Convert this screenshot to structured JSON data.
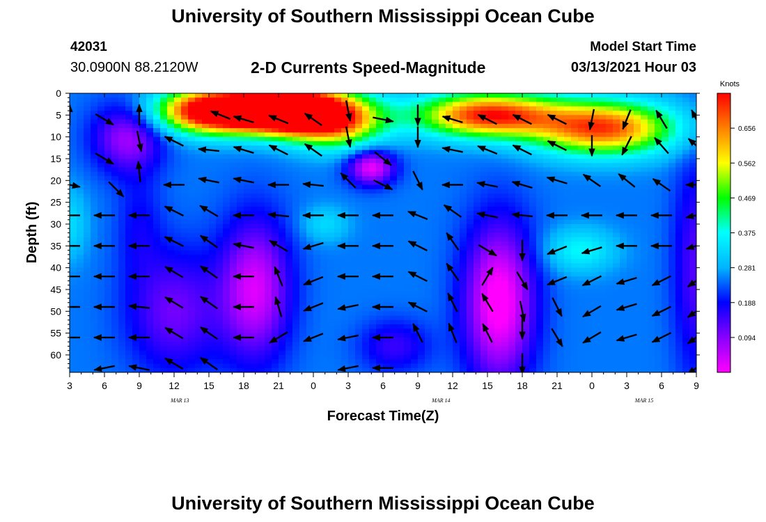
{
  "header": {
    "title": "University of Southern Mississippi Ocean Cube",
    "station_id": "42031",
    "station_coords": "30.0900N 88.2120W",
    "chart_title": "2-D Currents Speed-Magnitude",
    "model_start_label": "Model Start Time",
    "model_start_value": "03/13/2021 Hour 03"
  },
  "footer": {
    "title": "University of Southern Mississippi Ocean Cube"
  },
  "chart_data": {
    "type": "heatmap",
    "title": "2-D Currents Speed-Magnitude",
    "xlabel": "Forecast Time(Z)",
    "ylabel": "Depth (ft)",
    "x_unit": "hours since model start (03/13/2021 03Z)",
    "xlim": [
      0,
      54
    ],
    "ylim": [
      0,
      64
    ],
    "x_ticks": [
      {
        "label": "3",
        "value": 0
      },
      {
        "label": "6",
        "value": 3
      },
      {
        "label": "9",
        "value": 6
      },
      {
        "label": "12",
        "value": 9
      },
      {
        "label": "15",
        "value": 12
      },
      {
        "label": "18",
        "value": 15
      },
      {
        "label": "21",
        "value": 18
      },
      {
        "label": "0",
        "value": 21
      },
      {
        "label": "3",
        "value": 24
      },
      {
        "label": "6",
        "value": 27
      },
      {
        "label": "9",
        "value": 30
      },
      {
        "label": "12",
        "value": 33
      },
      {
        "label": "15",
        "value": 36
      },
      {
        "label": "18",
        "value": 39
      },
      {
        "label": "21",
        "value": 42
      },
      {
        "label": "0",
        "value": 45
      },
      {
        "label": "3",
        "value": 48
      },
      {
        "label": "6",
        "value": 51
      },
      {
        "label": "9",
        "value": 54
      }
    ],
    "date_labels": [
      {
        "label": "MAR 13",
        "value": 9.5
      },
      {
        "label": "MAR 14",
        "value": 32
      },
      {
        "label": "MAR 15",
        "value": 49.5
      }
    ],
    "y_ticks": [
      0,
      5,
      10,
      15,
      20,
      25,
      30,
      35,
      40,
      45,
      50,
      55,
      60
    ],
    "colorbar": {
      "unit": "Knots",
      "ticks": [
        "0.094",
        "0.188",
        "0.281",
        "0.375",
        "0.469",
        "0.562",
        "0.656"
      ],
      "tick_values": [
        0.094,
        0.188,
        0.281,
        0.375,
        0.469,
        0.562,
        0.656
      ],
      "range": [
        0,
        0.75
      ],
      "colors": [
        "#ff00ff",
        "#8800ff",
        "#0000ff",
        "#00b4ff",
        "#00ffff",
        "#00ff00",
        "#ffff00",
        "#ff8000",
        "#ff0000"
      ]
    },
    "speed_blobs": [
      {
        "x": 13,
        "y": 4,
        "sx": 5,
        "sy": 5,
        "v": 0.69
      },
      {
        "x": 19,
        "y": 4,
        "sx": 4,
        "sy": 5,
        "v": 0.69
      },
      {
        "x": 23,
        "y": 6,
        "sx": 4,
        "sy": 6,
        "v": 0.43
      },
      {
        "x": 36,
        "y": 5,
        "sx": 6,
        "sy": 5,
        "v": 0.48
      },
      {
        "x": 46,
        "y": 8,
        "sx": 6,
        "sy": 6,
        "v": 0.45
      },
      {
        "x": 5,
        "y": 10,
        "sx": 3,
        "sy": 8,
        "v": -0.18
      },
      {
        "x": 26,
        "y": 17,
        "sx": 2,
        "sy": 4,
        "v": -0.24
      },
      {
        "x": 16,
        "y": 45,
        "sx": 3,
        "sy": 16,
        "v": -0.22
      },
      {
        "x": 37,
        "y": 48,
        "sx": 3,
        "sy": 18,
        "v": -0.27
      },
      {
        "x": 9,
        "y": 50,
        "sx": 4,
        "sy": 14,
        "v": -0.14
      },
      {
        "x": 44,
        "y": 36,
        "sx": 3,
        "sy": 5,
        "v": 0.12
      },
      {
        "x": 22,
        "y": 30,
        "sx": 2,
        "sy": 4,
        "v": 0.08
      },
      {
        "x": 54,
        "y": 40,
        "sx": 2,
        "sy": 25,
        "v": -0.12
      },
      {
        "x": 28,
        "y": 58,
        "sx": 3,
        "sy": 6,
        "v": -0.1
      },
      {
        "x": 6,
        "y": 30,
        "sx": 2,
        "sy": 12,
        "v": -0.06
      },
      {
        "x": 0,
        "y": 30,
        "sx": 1.5,
        "sy": 8,
        "v": 0.08
      }
    ],
    "vectors": [
      {
        "t": 0,
        "d": 5,
        "dx": 0,
        "dy": -1
      },
      {
        "t": 3,
        "d": 6,
        "dx": 1,
        "dy": 0.6
      },
      {
        "t": 6,
        "d": 5,
        "dx": 0,
        "dy": -1
      },
      {
        "t": 13,
        "d": 5,
        "dx": -1,
        "dy": -0.4
      },
      {
        "t": 15,
        "d": 6,
        "dx": -1,
        "dy": -0.3
      },
      {
        "t": 18,
        "d": 6,
        "dx": -1,
        "dy": -0.4
      },
      {
        "t": 21,
        "d": 6,
        "dx": -1,
        "dy": -0.7
      },
      {
        "t": 24,
        "d": 4,
        "dx": 0.2,
        "dy": 1
      },
      {
        "t": 27,
        "d": 6,
        "dx": 1,
        "dy": 0.2
      },
      {
        "t": 30,
        "d": 5,
        "dx": 0,
        "dy": 1
      },
      {
        "t": 33,
        "d": 6,
        "dx": -1,
        "dy": -0.3
      },
      {
        "t": 36,
        "d": 6,
        "dx": -1,
        "dy": -0.5
      },
      {
        "t": 39,
        "d": 6,
        "dx": -1,
        "dy": -0.5
      },
      {
        "t": 42,
        "d": 6,
        "dx": -1,
        "dy": -0.5
      },
      {
        "t": 45,
        "d": 6,
        "dx": -0.2,
        "dy": 1
      },
      {
        "t": 48,
        "d": 6,
        "dx": -0.4,
        "dy": 1
      },
      {
        "t": 51,
        "d": 6,
        "dx": -0.6,
        "dy": -1
      },
      {
        "t": 54,
        "d": 6,
        "dx": -0.5,
        "dy": -1
      },
      {
        "t": 3,
        "d": 15,
        "dx": 1,
        "dy": 0.6
      },
      {
        "t": 6,
        "d": 11,
        "dx": 0.2,
        "dy": 1
      },
      {
        "t": 9,
        "d": 11,
        "dx": -1,
        "dy": -0.5
      },
      {
        "t": 12,
        "d": 13,
        "dx": -1,
        "dy": -0.1
      },
      {
        "t": 15,
        "d": 13,
        "dx": -1,
        "dy": -0.3
      },
      {
        "t": 18,
        "d": 13,
        "dx": -1,
        "dy": -0.5
      },
      {
        "t": 21,
        "d": 13,
        "dx": -1,
        "dy": -0.7
      },
      {
        "t": 24,
        "d": 10,
        "dx": 0.2,
        "dy": 1
      },
      {
        "t": 27,
        "d": 15,
        "dx": 1,
        "dy": 0.8
      },
      {
        "t": 30,
        "d": 10,
        "dx": 0,
        "dy": 1
      },
      {
        "t": 33,
        "d": 13,
        "dx": -1,
        "dy": -0.2
      },
      {
        "t": 36,
        "d": 13,
        "dx": -1,
        "dy": -0.4
      },
      {
        "t": 39,
        "d": 13,
        "dx": -1,
        "dy": -0.5
      },
      {
        "t": 42,
        "d": 12,
        "dx": -1,
        "dy": -0.5
      },
      {
        "t": 45,
        "d": 12,
        "dx": 0,
        "dy": 1
      },
      {
        "t": 48,
        "d": 12,
        "dx": -0.5,
        "dy": 1
      },
      {
        "t": 51,
        "d": 12,
        "dx": -0.7,
        "dy": -0.8
      },
      {
        "t": 54,
        "d": 12,
        "dx": -0.8,
        "dy": -0.7
      },
      {
        "t": 0,
        "d": 21,
        "dx": 1,
        "dy": 0.2
      },
      {
        "t": 4,
        "d": 22,
        "dx": 1,
        "dy": 1
      },
      {
        "t": 6,
        "d": 18,
        "dx": -0.1,
        "dy": -1
      },
      {
        "t": 9,
        "d": 21,
        "dx": -1,
        "dy": 0
      },
      {
        "t": 12,
        "d": 20,
        "dx": -1,
        "dy": -0.2
      },
      {
        "t": 15,
        "d": 20,
        "dx": -1,
        "dy": -0.2
      },
      {
        "t": 18,
        "d": 21,
        "dx": -1,
        "dy": 0
      },
      {
        "t": 21,
        "d": 21,
        "dx": -1,
        "dy": -0.1
      },
      {
        "t": 24,
        "d": 20,
        "dx": -1,
        "dy": -1
      },
      {
        "t": 27,
        "d": 21,
        "dx": 1,
        "dy": 0.5
      },
      {
        "t": 30,
        "d": 20,
        "dx": 0.5,
        "dy": 1
      },
      {
        "t": 33,
        "d": 21,
        "dx": -1,
        "dy": 0
      },
      {
        "t": 36,
        "d": 21,
        "dx": -1,
        "dy": -0.2
      },
      {
        "t": 39,
        "d": 21,
        "dx": -1,
        "dy": -0.3
      },
      {
        "t": 42,
        "d": 20,
        "dx": -1,
        "dy": -0.3
      },
      {
        "t": 45,
        "d": 20,
        "dx": -1,
        "dy": -0.7
      },
      {
        "t": 48,
        "d": 20,
        "dx": -1,
        "dy": -0.8
      },
      {
        "t": 51,
        "d": 21,
        "dx": -1,
        "dy": -0.7
      },
      {
        "t": 54,
        "d": 21,
        "dx": -1,
        "dy": 0
      },
      {
        "t": 0,
        "d": 28,
        "dx": -1,
        "dy": 0
      },
      {
        "t": 3,
        "d": 28,
        "dx": -1,
        "dy": 0
      },
      {
        "t": 6,
        "d": 28,
        "dx": -1,
        "dy": 0
      },
      {
        "t": 9,
        "d": 27,
        "dx": -1,
        "dy": -0.5
      },
      {
        "t": 12,
        "d": 27,
        "dx": -1,
        "dy": -0.6
      },
      {
        "t": 15,
        "d": 28,
        "dx": -1,
        "dy": 0
      },
      {
        "t": 18,
        "d": 28,
        "dx": -1,
        "dy": -0.1
      },
      {
        "t": 21,
        "d": 28,
        "dx": -1,
        "dy": 0
      },
      {
        "t": 24,
        "d": 28,
        "dx": -1,
        "dy": 0
      },
      {
        "t": 27,
        "d": 28,
        "dx": -1,
        "dy": 0
      },
      {
        "t": 30,
        "d": 28,
        "dx": -1,
        "dy": -0.4
      },
      {
        "t": 33,
        "d": 27,
        "dx": -1,
        "dy": -0.7
      },
      {
        "t": 36,
        "d": 28,
        "dx": -1,
        "dy": -0.2
      },
      {
        "t": 39,
        "d": 28,
        "dx": -1,
        "dy": -0.1
      },
      {
        "t": 42,
        "d": 28,
        "dx": -1,
        "dy": 0
      },
      {
        "t": 45,
        "d": 28,
        "dx": -1,
        "dy": 0
      },
      {
        "t": 48,
        "d": 28,
        "dx": -1,
        "dy": 0
      },
      {
        "t": 51,
        "d": 28,
        "dx": -1,
        "dy": 0
      },
      {
        "t": 54,
        "d": 28,
        "dx": -1,
        "dy": 0.2
      },
      {
        "t": 0,
        "d": 35,
        "dx": -1,
        "dy": 0
      },
      {
        "t": 3,
        "d": 35,
        "dx": -1,
        "dy": 0
      },
      {
        "t": 6,
        "d": 35,
        "dx": -1,
        "dy": 0
      },
      {
        "t": 9,
        "d": 34,
        "dx": -1,
        "dy": -0.5
      },
      {
        "t": 12,
        "d": 34,
        "dx": -1,
        "dy": -0.7
      },
      {
        "t": 15,
        "d": 35,
        "dx": -1,
        "dy": -0.2
      },
      {
        "t": 18,
        "d": 35,
        "dx": -1,
        "dy": -0.6
      },
      {
        "t": 21,
        "d": 35,
        "dx": -1,
        "dy": 0.3
      },
      {
        "t": 24,
        "d": 35,
        "dx": -1,
        "dy": 0
      },
      {
        "t": 27,
        "d": 35,
        "dx": -1,
        "dy": 0
      },
      {
        "t": 30,
        "d": 35,
        "dx": -1,
        "dy": -0.5
      },
      {
        "t": 33,
        "d": 34,
        "dx": -0.7,
        "dy": -1
      },
      {
        "t": 36,
        "d": 36,
        "dx": 1,
        "dy": 0.6
      },
      {
        "t": 39,
        "d": 36,
        "dx": 0,
        "dy": 1
      },
      {
        "t": 42,
        "d": 36,
        "dx": -1,
        "dy": 0.4
      },
      {
        "t": 45,
        "d": 36,
        "dx": -1,
        "dy": 0.3
      },
      {
        "t": 48,
        "d": 35,
        "dx": -1,
        "dy": 0
      },
      {
        "t": 51,
        "d": 35,
        "dx": -1,
        "dy": 0
      },
      {
        "t": 54,
        "d": 35,
        "dx": -1,
        "dy": 0.3
      },
      {
        "t": 0,
        "d": 42,
        "dx": -1,
        "dy": 0
      },
      {
        "t": 3,
        "d": 42,
        "dx": -1,
        "dy": 0
      },
      {
        "t": 6,
        "d": 42,
        "dx": -1,
        "dy": 0
      },
      {
        "t": 9,
        "d": 41,
        "dx": -1,
        "dy": -0.6
      },
      {
        "t": 12,
        "d": 41,
        "dx": -1,
        "dy": -0.7
      },
      {
        "t": 15,
        "d": 42,
        "dx": -1,
        "dy": 0
      },
      {
        "t": 18,
        "d": 42,
        "dx": -0.4,
        "dy": -1
      },
      {
        "t": 21,
        "d": 43,
        "dx": -1,
        "dy": 0.4
      },
      {
        "t": 24,
        "d": 42,
        "dx": -1,
        "dy": 0
      },
      {
        "t": 27,
        "d": 42,
        "dx": -1,
        "dy": 0
      },
      {
        "t": 30,
        "d": 42,
        "dx": -1,
        "dy": -0.5
      },
      {
        "t": 33,
        "d": 41,
        "dx": -0.7,
        "dy": -1
      },
      {
        "t": 36,
        "d": 42,
        "dx": 0.6,
        "dy": -1
      },
      {
        "t": 39,
        "d": 43,
        "dx": 0.6,
        "dy": 1
      },
      {
        "t": 42,
        "d": 43,
        "dx": -1,
        "dy": 0.4
      },
      {
        "t": 45,
        "d": 43,
        "dx": -1,
        "dy": 0.5
      },
      {
        "t": 48,
        "d": 43,
        "dx": -1,
        "dy": 0.3
      },
      {
        "t": 51,
        "d": 43,
        "dx": -1,
        "dy": 0.5
      },
      {
        "t": 54,
        "d": 43,
        "dx": -1,
        "dy": 0.7
      },
      {
        "t": 0,
        "d": 49,
        "dx": -1,
        "dy": 0
      },
      {
        "t": 3,
        "d": 49,
        "dx": -1,
        "dy": 0
      },
      {
        "t": 6,
        "d": 49,
        "dx": -1,
        "dy": -0.1
      },
      {
        "t": 9,
        "d": 48,
        "dx": -1,
        "dy": -0.6
      },
      {
        "t": 12,
        "d": 48,
        "dx": -1,
        "dy": -0.7
      },
      {
        "t": 15,
        "d": 49,
        "dx": -1,
        "dy": 0
      },
      {
        "t": 18,
        "d": 49,
        "dx": -0.3,
        "dy": -1
      },
      {
        "t": 21,
        "d": 49,
        "dx": -1,
        "dy": 0.4
      },
      {
        "t": 24,
        "d": 49,
        "dx": -1,
        "dy": 0.2
      },
      {
        "t": 27,
        "d": 49,
        "dx": -1,
        "dy": 0
      },
      {
        "t": 30,
        "d": 49,
        "dx": -1,
        "dy": -0.5
      },
      {
        "t": 33,
        "d": 48,
        "dx": -0.5,
        "dy": -1
      },
      {
        "t": 36,
        "d": 48,
        "dx": -0.6,
        "dy": -1
      },
      {
        "t": 39,
        "d": 50,
        "dx": 0.2,
        "dy": 1
      },
      {
        "t": 42,
        "d": 49,
        "dx": 0.5,
        "dy": 1
      },
      {
        "t": 45,
        "d": 50,
        "dx": -1,
        "dy": 0.6
      },
      {
        "t": 48,
        "d": 49,
        "dx": -1,
        "dy": 0.3
      },
      {
        "t": 51,
        "d": 50,
        "dx": -1,
        "dy": 0.5
      },
      {
        "t": 54,
        "d": 50,
        "dx": -1,
        "dy": 0.7
      },
      {
        "t": 0,
        "d": 56,
        "dx": -1,
        "dy": 0
      },
      {
        "t": 3,
        "d": 56,
        "dx": -1,
        "dy": 0
      },
      {
        "t": 6,
        "d": 56,
        "dx": -1,
        "dy": 0
      },
      {
        "t": 9,
        "d": 55,
        "dx": -1,
        "dy": -0.6
      },
      {
        "t": 12,
        "d": 55,
        "dx": -1,
        "dy": -0.7
      },
      {
        "t": 15,
        "d": 56,
        "dx": -1,
        "dy": 0
      },
      {
        "t": 18,
        "d": 56,
        "dx": -1,
        "dy": 0.6
      },
      {
        "t": 21,
        "d": 56,
        "dx": -1,
        "dy": 0.4
      },
      {
        "t": 24,
        "d": 56,
        "dx": -1,
        "dy": 0.2
      },
      {
        "t": 27,
        "d": 56,
        "dx": -1,
        "dy": 0
      },
      {
        "t": 30,
        "d": 55,
        "dx": -0.5,
        "dy": -1
      },
      {
        "t": 33,
        "d": 55,
        "dx": -0.4,
        "dy": -1
      },
      {
        "t": 36,
        "d": 55,
        "dx": -0.5,
        "dy": -1
      },
      {
        "t": 39,
        "d": 54,
        "dx": 0,
        "dy": 1
      },
      {
        "t": 42,
        "d": 56,
        "dx": 0.6,
        "dy": 1
      },
      {
        "t": 45,
        "d": 56,
        "dx": -1,
        "dy": 0.6
      },
      {
        "t": 48,
        "d": 56,
        "dx": -1,
        "dy": 0.3
      },
      {
        "t": 51,
        "d": 56,
        "dx": -1,
        "dy": 0.5
      },
      {
        "t": 54,
        "d": 56,
        "dx": -1,
        "dy": 0.7
      },
      {
        "t": 3,
        "d": 63,
        "dx": -1,
        "dy": 0.2
      },
      {
        "t": 6,
        "d": 63,
        "dx": -1,
        "dy": -0.2
      },
      {
        "t": 9,
        "d": 62,
        "dx": -1,
        "dy": -0.6
      },
      {
        "t": 12,
        "d": 62,
        "dx": -1,
        "dy": -0.7
      },
      {
        "t": 24,
        "d": 63,
        "dx": -1,
        "dy": 0.2
      },
      {
        "t": 27,
        "d": 63,
        "dx": -1,
        "dy": 0
      },
      {
        "t": 39,
        "d": 62,
        "dx": 0,
        "dy": 1
      },
      {
        "t": 54,
        "d": 63,
        "dx": -1,
        "dy": 0.7
      }
    ]
  }
}
